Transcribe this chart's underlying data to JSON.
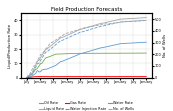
{
  "title": "Field Production Forecasts",
  "ylabel_left": "Liquid/Production Rate",
  "ylabel_right": "No. of Wells",
  "ylim_left": [
    0,
    45
  ],
  "ylim_right": [
    0,
    550
  ],
  "yticks_left": [
    0,
    10,
    20,
    30,
    40
  ],
  "yticks_right": [
    0,
    100,
    200,
    300,
    400,
    500
  ],
  "background_color": "#ffffff",
  "grid_color": "#d9d9d9",
  "series": {
    "oil_rate": {
      "label": "Oil Rate",
      "color": "#70ad47",
      "linestyle": "-",
      "linewidth": 0.6
    },
    "water_rate": {
      "label": "Water Rate",
      "color": "#5b9bd5",
      "linestyle": "-",
      "linewidth": 0.6
    },
    "liquid_rate": {
      "label": "Liquid Rate",
      "color": "#a5a5a5",
      "linestyle": "-",
      "linewidth": 0.6
    },
    "water_inj_rate": {
      "label": "Water Injection Rate",
      "color": "#5b9bd5",
      "linestyle": "--",
      "linewidth": 0.6
    },
    "gas_rate": {
      "label": "Gas Rate",
      "color": "#ff0000",
      "linestyle": "-",
      "linewidth": 0.6
    },
    "no_of_wells": {
      "label": "No. of Wells",
      "color": "#a5a5a5",
      "linestyle": "--",
      "linewidth": 0.6
    }
  },
  "n_points": 120,
  "x_tick_labels": [
    "July",
    "January",
    "July",
    "January",
    "July",
    "January",
    "July",
    "January",
    "July",
    "January"
  ],
  "title_fontsize": 4.0,
  "axis_fontsize": 2.8,
  "tick_fontsize": 2.5,
  "legend_fontsize": 2.5
}
